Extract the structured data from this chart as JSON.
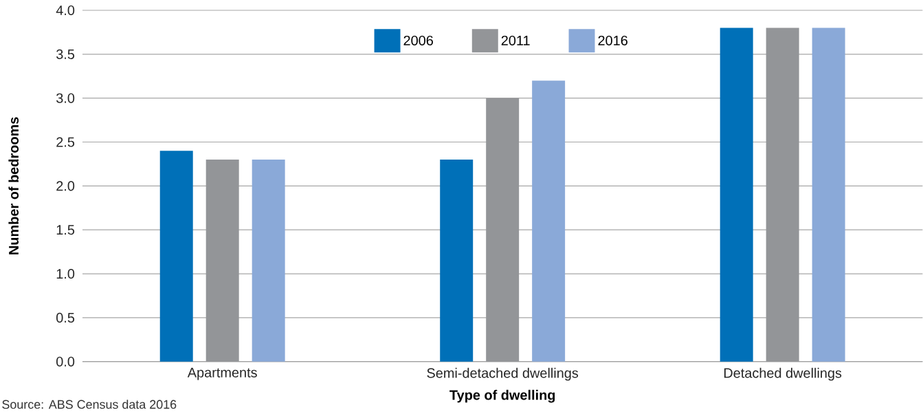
{
  "chart_data": {
    "type": "bar",
    "categories": [
      "Apartments",
      "Semi-detached dwellings",
      "Detached dwellings"
    ],
    "series": [
      {
        "name": "2006",
        "color": "#0070b8",
        "values": [
          2.4,
          2.3,
          3.8
        ]
      },
      {
        "name": "2011",
        "color": "#939598",
        "values": [
          2.3,
          3.0,
          3.8
        ]
      },
      {
        "name": "2016",
        "color": "#8aa9d8",
        "values": [
          2.3,
          3.2,
          3.8
        ]
      }
    ],
    "xlabel": "Type of dwelling",
    "ylabel": "Number of bedrooms",
    "ylim": [
      0,
      4
    ],
    "yticks": [
      {
        "value": 0,
        "label": "0.0"
      },
      0.5,
      {
        "value": 1,
        "label": "1.0"
      },
      1.5,
      {
        "value": 2,
        "label": "2.0"
      },
      2.5,
      {
        "value": 3,
        "label": "3.0"
      },
      3.5,
      {
        "value": 4,
        "label": "4.0"
      }
    ],
    "grid": "y",
    "legend": "top",
    "annotations": [
      "Source: ABS Census data 2016"
    ]
  }
}
